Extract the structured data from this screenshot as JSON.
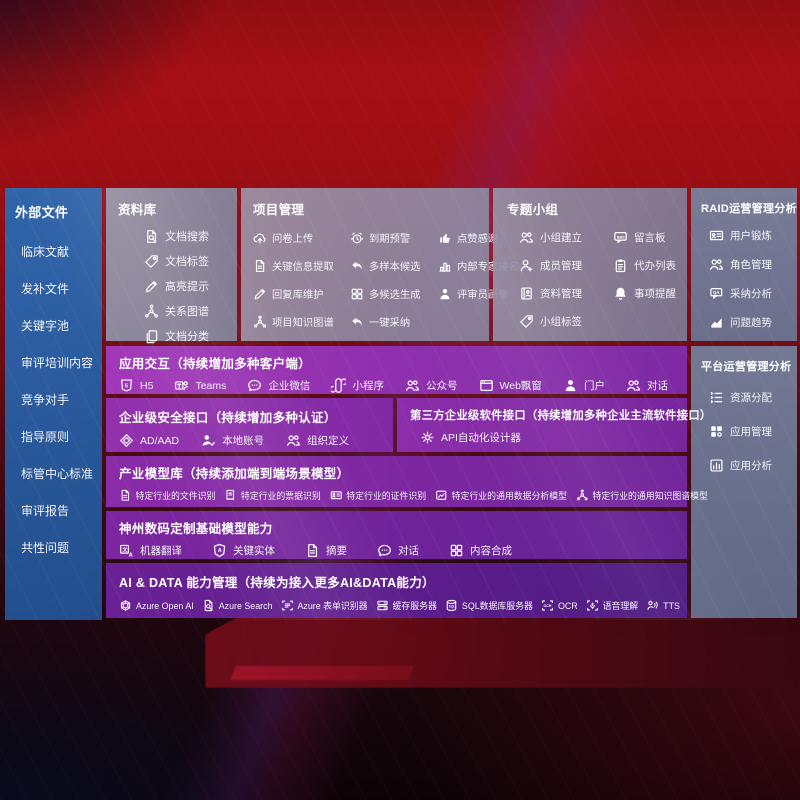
{
  "colors": {
    "accent_red": "#a50f13",
    "accent_purple": "#8a2ba8",
    "panel_blue": "#2a5b9e",
    "panel_gray": "#8a90a8"
  },
  "sidebar": {
    "title": "外部文件",
    "items": [
      {
        "label": "临床文献"
      },
      {
        "label": "发补文件"
      },
      {
        "label": "关键字池"
      },
      {
        "label": "审评培训内容"
      },
      {
        "label": "竞争对手"
      },
      {
        "label": "指导原则"
      },
      {
        "label": "标管中心标准"
      },
      {
        "label": "审评报告"
      },
      {
        "label": "共性问题"
      }
    ]
  },
  "library": {
    "title": "资料库",
    "items": [
      {
        "label": "文档搜索",
        "icon": "document-search-icon"
      },
      {
        "label": "文档标签",
        "icon": "tag-icon"
      },
      {
        "label": "高亮提示",
        "icon": "highlighter-icon"
      },
      {
        "label": "关系图谱",
        "icon": "knowledge-graph-icon"
      },
      {
        "label": "文档分类",
        "icon": "documents-icon"
      }
    ]
  },
  "project": {
    "title": "项目管理",
    "items": [
      {
        "label": "问卷上传",
        "icon": "cloud-upload-icon"
      },
      {
        "label": "到期预警",
        "icon": "alarm-icon"
      },
      {
        "label": "点赞感谢",
        "icon": "thumbs-up-icon"
      },
      {
        "label": "关键信息提取",
        "icon": "document-extract-icon"
      },
      {
        "label": "多样本候选",
        "icon": "reply-arrow-icon"
      },
      {
        "label": "内部专家排名",
        "icon": "ranking-icon"
      },
      {
        "label": "回复库维护",
        "icon": "pencil-icon"
      },
      {
        "label": "多候选生成",
        "icon": "grid-icon"
      },
      {
        "label": "评审员画像",
        "icon": "person-icon"
      },
      {
        "label": "项目知识图谱",
        "icon": "knowledge-graph-icon"
      },
      {
        "label": "一键采纳",
        "icon": "reply-arrow-icon"
      }
    ]
  },
  "group": {
    "title": "专题小组",
    "items": [
      {
        "label": "小组建立",
        "icon": "people-icon"
      },
      {
        "label": "留言板",
        "icon": "bbs-icon"
      },
      {
        "label": "成员管理",
        "icon": "person-add-icon"
      },
      {
        "label": "代办列表",
        "icon": "clipboard-icon"
      },
      {
        "label": "资料管理",
        "icon": "album-icon"
      },
      {
        "label": "事项提醒",
        "icon": "bell-icon"
      },
      {
        "label": "小组标签",
        "icon": "tag-icon"
      }
    ]
  },
  "raid": {
    "title": "RAID运营管理分析",
    "items": [
      {
        "label": "用户锻炼",
        "icon": "id-card-icon"
      },
      {
        "label": "角色管理",
        "icon": "people-icon"
      },
      {
        "label": "采纳分析",
        "icon": "qa-chat-icon"
      },
      {
        "label": "问题趋势",
        "icon": "trend-icon"
      }
    ]
  },
  "platform": {
    "title": "平台运营管理分析",
    "items": [
      {
        "label": "资源分配",
        "icon": "list-icon"
      },
      {
        "label": "应用管理",
        "icon": "apps-icon"
      },
      {
        "label": "应用分析",
        "icon": "chart-icon"
      }
    ]
  },
  "interaction": {
    "title": "应用交互（持续增加多种客户端）",
    "items": [
      {
        "label": "H5",
        "icon": "h5-icon"
      },
      {
        "label": "Teams",
        "icon": "teams-icon"
      },
      {
        "label": "企业微信",
        "icon": "wechat-work-icon"
      },
      {
        "label": "小程序",
        "icon": "miniprogram-icon"
      },
      {
        "label": "公众号",
        "icon": "official-account-icon"
      },
      {
        "label": "Web飘窗",
        "icon": "web-popup-icon"
      },
      {
        "label": "门户",
        "icon": "portal-icon"
      },
      {
        "label": "对话",
        "icon": "dialog-icon"
      }
    ]
  },
  "security": {
    "title": "企业级安全接口（持续增加多种认证）",
    "items": [
      {
        "label": "AD/AAD",
        "icon": "ad-shield-icon"
      },
      {
        "label": "本地账号",
        "icon": "user-check-icon"
      },
      {
        "label": "组织定义",
        "icon": "org-users-icon"
      }
    ]
  },
  "thirdparty": {
    "title": "第三方企业级软件接口（持续增加多种企业主流软件接口）",
    "items": [
      {
        "label": "API自动化设计器",
        "icon": "api-gear-icon"
      }
    ]
  },
  "industry": {
    "title": "产业模型库（持续添加端到端场景模型）",
    "items": [
      {
        "label": "特定行业的文件识别",
        "icon": "document-icon"
      },
      {
        "label": "特定行业的票据识别",
        "icon": "receipt-icon"
      },
      {
        "label": "特定行业的证件识别",
        "icon": "id-card-icon"
      },
      {
        "label": "特定行业的通用数据分析模型",
        "icon": "image-chart-icon"
      },
      {
        "label": "特定行业的通用知识图谱模型",
        "icon": "knowledge-graph-icon"
      }
    ]
  },
  "foundation": {
    "title": "神州数码定制基础模型能力",
    "items": [
      {
        "label": "机器翻译",
        "icon": "translate-icon"
      },
      {
        "label": "关键实体",
        "icon": "shield-a-icon"
      },
      {
        "label": "摘要",
        "icon": "summary-doc-icon"
      },
      {
        "label": "对话",
        "icon": "chat-icon"
      },
      {
        "label": "内容合成",
        "icon": "compose-grid-icon"
      }
    ]
  },
  "aidata": {
    "title": "AI & DATA 能力管理（持续为接入更多AI&DATA能力）",
    "items": [
      {
        "label": "Azure Open AI",
        "icon": "openai-icon"
      },
      {
        "label": "Azure Search",
        "icon": "azure-search-icon"
      },
      {
        "label": "Azure 表单识别器",
        "icon": "form-recognizer-icon"
      },
      {
        "label": "缓存服务器",
        "icon": "cache-server-icon"
      },
      {
        "label": "SQL数据库服务器",
        "icon": "sql-database-icon"
      },
      {
        "label": "OCR",
        "icon": "ocr-icon"
      },
      {
        "label": "语音理解",
        "icon": "speech-understanding-icon"
      },
      {
        "label": "TTS",
        "icon": "tts-icon"
      }
    ]
  }
}
